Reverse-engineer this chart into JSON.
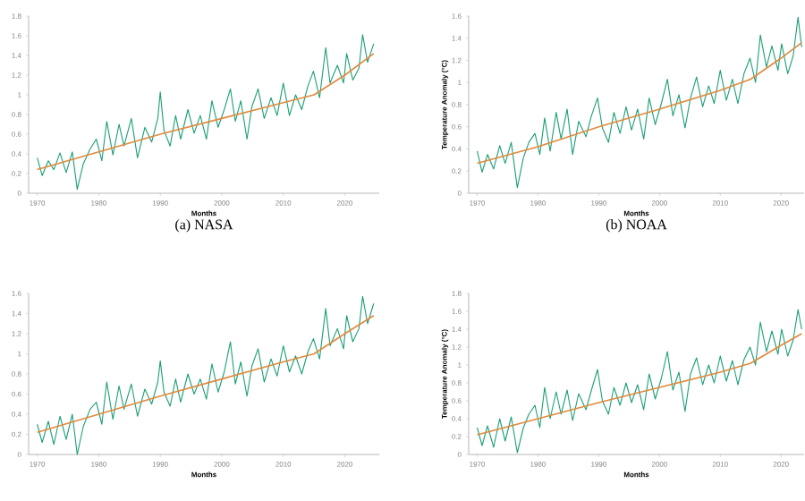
{
  "chart_data": [
    {
      "type": "line",
      "title": "(a) NASA",
      "xlabel": "Months",
      "xlim": [
        1968.6,
        2025.6
      ],
      "ylim": [
        0,
        1.8
      ],
      "xticks": [
        1970,
        1980,
        1990,
        2000,
        2010,
        2020
      ],
      "yticks": [
        0,
        0.2,
        0.4,
        0.6,
        0.8,
        1,
        1.2,
        1.4,
        1.6,
        1.8
      ],
      "series": [
        {
          "color": "#1b9e77",
          "x": [
            1970,
            1970.8,
            1971.8,
            1972.7,
            1973.7,
            1974.7,
            1975.7,
            1976.5,
            1977.5,
            1978.6,
            1979.6,
            1980.5,
            1981.3,
            1982.3,
            1983.3,
            1984.1,
            1985.3,
            1986.3,
            1987.5,
            1988.6,
            1989.6,
            1990,
            1990.6,
            1991.6,
            1992.5,
            1993.3,
            1994.5,
            1995.5,
            1996.5,
            1997.5,
            1998.4,
            1999.4,
            2000.4,
            2001.4,
            2002.2,
            2003.1,
            2004.1,
            2004.9,
            2005.9,
            2006.9,
            2008,
            2009,
            2010,
            2011,
            2012,
            2013,
            2014,
            2014.9,
            2015.9,
            2016.9,
            2017.6,
            2018.8,
            2019.8,
            2020.3,
            2021.3,
            2022.3,
            2022.9,
            2023.7,
            2024.7
          ],
          "values": [
            0.36,
            0.18,
            0.33,
            0.24,
            0.41,
            0.21,
            0.42,
            0.04,
            0.3,
            0.45,
            0.55,
            0.33,
            0.73,
            0.39,
            0.7,
            0.48,
            0.76,
            0.36,
            0.67,
            0.52,
            0.76,
            1.03,
            0.64,
            0.48,
            0.79,
            0.55,
            0.85,
            0.61,
            0.79,
            0.55,
            0.94,
            0.67,
            0.85,
            1.06,
            0.73,
            0.94,
            0.55,
            0.88,
            1.06,
            0.76,
            0.97,
            0.79,
            1.12,
            0.79,
            1.0,
            0.85,
            1.09,
            1.24,
            0.97,
            1.48,
            1.12,
            1.3,
            1.12,
            1.42,
            1.15,
            1.27,
            1.61,
            1.33,
            1.52
          ]
        },
        {
          "type": "line",
          "color": "#e08a3c",
          "x": [
            1970,
            1980,
            1990,
            2000,
            2010,
            2015,
            2020,
            2024.7
          ],
          "values": [
            0.24,
            0.42,
            0.6,
            0.76,
            0.92,
            1.0,
            1.2,
            1.42
          ]
        }
      ]
    },
    {
      "type": "line",
      "title": "(b) NOAA",
      "xlabel": "Months",
      "ylabel": "Temperature Anomaly (°C)",
      "xlim": [
        1968.6,
        2023.8
      ],
      "ylim": [
        0,
        1.6
      ],
      "xticks": [
        1970,
        1980,
        1990,
        2000,
        2010,
        2020
      ],
      "yticks": [
        0,
        0.2,
        0.4,
        0.6,
        0.8,
        1,
        1.2,
        1.4,
        1.6
      ],
      "series": [
        {
          "color": "#1b9e77",
          "x": [
            1970,
            1970.8,
            1971.7,
            1972.7,
            1973.7,
            1974.6,
            1975.6,
            1976.6,
            1977.6,
            1978.5,
            1979.5,
            1980.3,
            1981.1,
            1982,
            1983,
            1983.8,
            1984.8,
            1985.7,
            1986.7,
            1987.9,
            1988.8,
            1989.8,
            1990.6,
            1991.6,
            1992.5,
            1993.5,
            1994.5,
            1995.4,
            1996.4,
            1997.4,
            1998.3,
            1999.3,
            2000.3,
            2001.3,
            2002.2,
            2003.2,
            2004.2,
            2005.1,
            2006.1,
            2007.1,
            2008.1,
            2009,
            2010,
            2011,
            2012,
            2012.9,
            2013.9,
            2014.9,
            2015.8,
            2016.6,
            2017.6,
            2018.5,
            2019.5,
            2020.1,
            2021.1,
            2022,
            2022.8,
            2023.4
          ],
          "values": [
            0.38,
            0.19,
            0.35,
            0.22,
            0.43,
            0.27,
            0.46,
            0.05,
            0.32,
            0.46,
            0.54,
            0.35,
            0.68,
            0.38,
            0.73,
            0.49,
            0.76,
            0.35,
            0.65,
            0.51,
            0.7,
            0.86,
            0.59,
            0.46,
            0.73,
            0.54,
            0.78,
            0.57,
            0.76,
            0.49,
            0.86,
            0.62,
            0.81,
            1.03,
            0.7,
            0.89,
            0.59,
            0.86,
            1.05,
            0.78,
            0.97,
            0.81,
            1.11,
            0.84,
            1.03,
            0.81,
            1.08,
            1.22,
            1.0,
            1.43,
            1.14,
            1.33,
            1.11,
            1.35,
            1.08,
            1.24,
            1.59,
            1.32
          ]
        },
        {
          "type": "line",
          "color": "#e08a3c",
          "x": [
            1970,
            1980,
            1990,
            2000,
            2010,
            2015,
            2020,
            2023.4
          ],
          "values": [
            0.27,
            0.42,
            0.6,
            0.76,
            0.93,
            1.03,
            1.22,
            1.36
          ]
        }
      ]
    },
    {
      "type": "line",
      "xlabel": "Months",
      "xlim": [
        1968.6,
        2025.6
      ],
      "ylim": [
        0,
        1.6
      ],
      "xticks": [
        1970,
        1980,
        1990,
        2000,
        2010,
        2020
      ],
      "yticks": [
        0,
        0.2,
        0.4,
        0.6,
        0.8,
        1,
        1.2,
        1.4,
        1.6
      ],
      "series": [
        {
          "color": "#1b9e77",
          "x": [
            1970,
            1970.8,
            1971.8,
            1972.7,
            1973.7,
            1974.7,
            1975.7,
            1976.5,
            1977.5,
            1978.6,
            1979.6,
            1980.5,
            1981.3,
            1982.3,
            1983.3,
            1984.1,
            1985.3,
            1986.3,
            1987.5,
            1988.6,
            1989.6,
            1990,
            1990.6,
            1991.6,
            1992.5,
            1993.3,
            1994.5,
            1995.5,
            1996.5,
            1997.5,
            1998.4,
            1999.4,
            2000.4,
            2001.4,
            2002.2,
            2003.1,
            2004.1,
            2004.9,
            2005.9,
            2006.9,
            2008,
            2009,
            2010,
            2011,
            2012,
            2013,
            2014,
            2014.9,
            2015.9,
            2016.9,
            2017.6,
            2018.8,
            2019.8,
            2020.3,
            2021.3,
            2022.3,
            2022.9,
            2023.7,
            2024.7
          ],
          "values": [
            0.3,
            0.12,
            0.33,
            0.1,
            0.38,
            0.15,
            0.4,
            0.0,
            0.28,
            0.45,
            0.52,
            0.3,
            0.72,
            0.35,
            0.68,
            0.45,
            0.7,
            0.38,
            0.65,
            0.5,
            0.72,
            0.93,
            0.62,
            0.48,
            0.75,
            0.52,
            0.8,
            0.6,
            0.75,
            0.55,
            0.9,
            0.62,
            0.82,
            1.12,
            0.7,
            0.92,
            0.58,
            0.88,
            1.05,
            0.72,
            0.95,
            0.78,
            1.08,
            0.82,
            0.98,
            0.8,
            1.02,
            1.15,
            0.95,
            1.45,
            1.08,
            1.25,
            1.05,
            1.38,
            1.12,
            1.25,
            1.57,
            1.3,
            1.5
          ]
        },
        {
          "type": "line",
          "color": "#e08a3c",
          "x": [
            1970,
            1980,
            1990,
            2000,
            2010,
            2015,
            2020,
            2024.7
          ],
          "values": [
            0.22,
            0.4,
            0.58,
            0.75,
            0.92,
            1.0,
            1.2,
            1.38
          ]
        }
      ]
    },
    {
      "type": "line",
      "xlabel": "Months",
      "ylabel": "Temperature Anomaly (°C)",
      "xlim": [
        1968.6,
        2023.8
      ],
      "ylim": [
        0,
        1.8
      ],
      "xticks": [
        1970,
        1980,
        1990,
        2000,
        2010,
        2020
      ],
      "yticks": [
        0,
        0.2,
        0.4,
        0.6,
        0.8,
        1,
        1.2,
        1.4,
        1.6,
        1.8
      ],
      "series": [
        {
          "color": "#1b9e77",
          "x": [
            1970,
            1970.8,
            1971.7,
            1972.7,
            1973.7,
            1974.6,
            1975.6,
            1976.6,
            1977.6,
            1978.5,
            1979.5,
            1980.3,
            1981.1,
            1982,
            1983,
            1983.8,
            1984.8,
            1985.7,
            1986.7,
            1987.9,
            1988.8,
            1989.8,
            1990.6,
            1991.6,
            1992.5,
            1993.5,
            1994.5,
            1995.4,
            1996.4,
            1997.4,
            1998.3,
            1999.3,
            2000.3,
            2001.3,
            2002.2,
            2003.2,
            2004.2,
            2005.1,
            2006.1,
            2007.1,
            2008.1,
            2009,
            2010,
            2011,
            2012,
            2012.9,
            2013.9,
            2014.9,
            2015.8,
            2016.6,
            2017.6,
            2018.5,
            2019.5,
            2020.1,
            2021.1,
            2022,
            2022.8,
            2023.4
          ],
          "values": [
            0.3,
            0.1,
            0.32,
            0.08,
            0.4,
            0.15,
            0.42,
            0.02,
            0.3,
            0.45,
            0.55,
            0.3,
            0.75,
            0.4,
            0.7,
            0.45,
            0.72,
            0.38,
            0.68,
            0.5,
            0.72,
            0.95,
            0.6,
            0.45,
            0.75,
            0.55,
            0.8,
            0.58,
            0.78,
            0.5,
            0.9,
            0.62,
            0.85,
            1.15,
            0.72,
            0.92,
            0.48,
            0.9,
            1.08,
            0.78,
            1.0,
            0.8,
            1.1,
            0.82,
            1.05,
            0.78,
            1.06,
            1.2,
            1.0,
            1.48,
            1.15,
            1.38,
            1.12,
            1.4,
            1.1,
            1.28,
            1.62,
            1.4
          ]
        },
        {
          "type": "line",
          "color": "#e08a3c",
          "x": [
            1970,
            1980,
            1990,
            2000,
            2010,
            2015,
            2020,
            2023.4
          ],
          "values": [
            0.22,
            0.4,
            0.58,
            0.75,
            0.92,
            1.02,
            1.22,
            1.35
          ]
        }
      ]
    }
  ]
}
